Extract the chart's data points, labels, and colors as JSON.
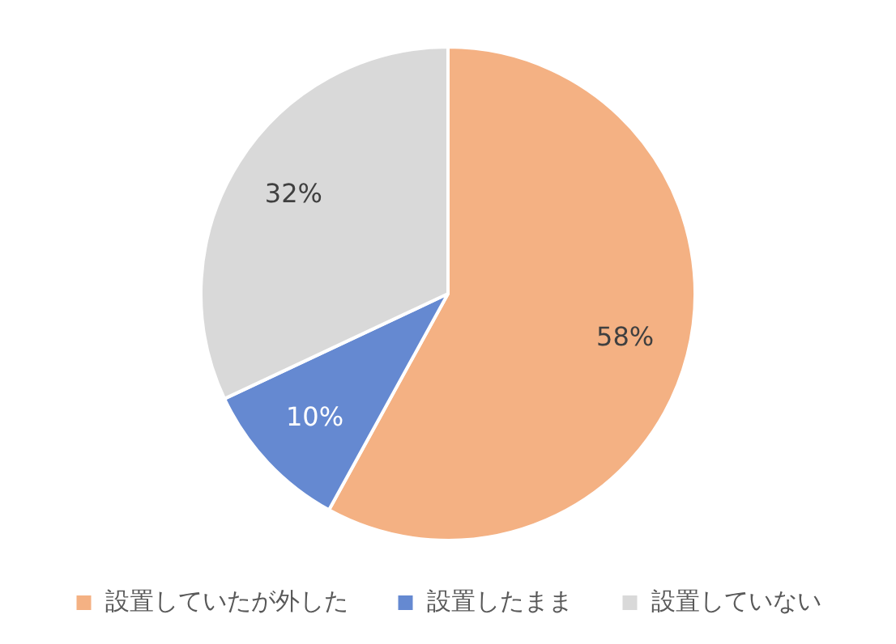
{
  "chart_data": {
    "type": "pie",
    "categories": [
      "設置していたが外した",
      "設置したまま",
      "設置していない"
    ],
    "values": [
      58,
      10,
      32
    ],
    "colors": [
      "#f4b183",
      "#6589d1",
      "#d9d9d9"
    ],
    "value_labels": [
      "58%",
      "10%",
      "32%"
    ],
    "legend": "bottom"
  }
}
